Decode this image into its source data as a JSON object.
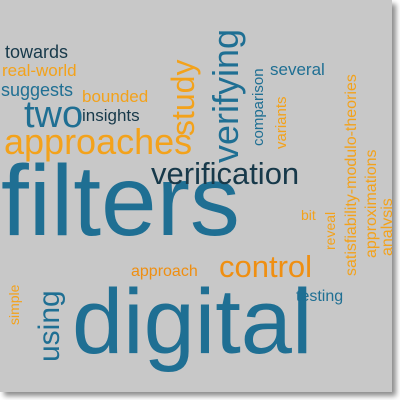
{
  "words": [
    {
      "id": "filters",
      "text": "filters",
      "color": "#1f6f93"
    },
    {
      "id": "digital",
      "text": "digital",
      "color": "#1f6f93"
    },
    {
      "id": "approaches",
      "text": "approaches",
      "color": "#f3a21b"
    },
    {
      "id": "verification",
      "text": "verification",
      "color": "#17394a"
    },
    {
      "id": "control",
      "text": "control",
      "color": "#ef8f12"
    },
    {
      "id": "two",
      "text": "two",
      "color": "#1f6f93"
    },
    {
      "id": "verifying",
      "text": "verifying",
      "color": "#1f6f93"
    },
    {
      "id": "study",
      "text": "study",
      "color": "#f3a21b"
    },
    {
      "id": "using",
      "text": "using",
      "color": "#1f6f93"
    },
    {
      "id": "towards",
      "text": "towards",
      "color": "#17394a"
    },
    {
      "id": "real_world",
      "text": "real-world",
      "color": "#f3a21b"
    },
    {
      "id": "suggests",
      "text": "suggests",
      "color": "#1f6f93"
    },
    {
      "id": "bounded",
      "text": "bounded",
      "color": "#f3a21b"
    },
    {
      "id": "insights",
      "text": "insights",
      "color": "#17394a"
    },
    {
      "id": "comparison",
      "text": "comparison",
      "color": "#1f6f93"
    },
    {
      "id": "several",
      "text": "several",
      "color": "#1f6f93"
    },
    {
      "id": "variants",
      "text": "variants",
      "color": "#f3a21b"
    },
    {
      "id": "smt",
      "text": "satisfiability-modulo-theories",
      "color": "#f3a21b"
    },
    {
      "id": "approximations",
      "text": "approximations",
      "color": "#f3a21b"
    },
    {
      "id": "analysis",
      "text": "analysis",
      "color": "#f3a21b"
    },
    {
      "id": "bit",
      "text": "bit",
      "color": "#f3a21b"
    },
    {
      "id": "reveal",
      "text": "reveal",
      "color": "#f3a21b"
    },
    {
      "id": "approach",
      "text": "approach",
      "color": "#ef8f12"
    },
    {
      "id": "simple",
      "text": "simple",
      "color": "#f3a21b"
    },
    {
      "id": "testing",
      "text": "testing",
      "color": "#1f6f93"
    }
  ]
}
